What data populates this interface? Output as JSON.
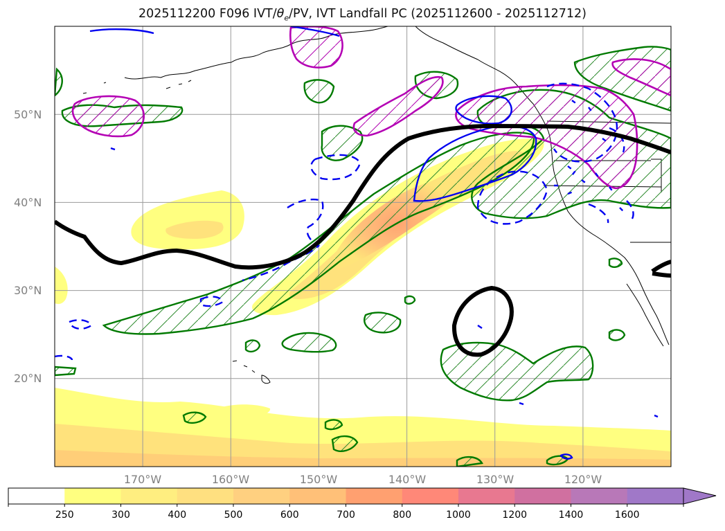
{
  "title": {
    "prefix": "2025112200 F096 IVT/",
    "theta_symbol": "θ",
    "theta_subscript": "e",
    "suffix": "/PV, IVT Landfall PC (2025112600 - 2025112712)"
  },
  "map": {
    "projection": "equirectangular",
    "lon_range": [
      -180,
      -110
    ],
    "lat_range": [
      10,
      60
    ],
    "lat_gridlines": [
      20,
      30,
      40,
      50
    ],
    "lon_gridlines": [
      -170,
      -160,
      -150,
      -140,
      -130,
      -120
    ],
    "lat_labels": [
      "20°N",
      "30°N",
      "40°N",
      "50°N"
    ],
    "lon_labels": [
      "170°W",
      "160°W",
      "150°W",
      "140°W",
      "130°W",
      "120°W"
    ],
    "layers": [
      {
        "name": "IVT filled contours",
        "color_low": "#ffff80",
        "color_high": "#ffa070"
      },
      {
        "name": "landfall probability hatched",
        "color": "#008000"
      },
      {
        "name": "PV contour",
        "color": "#000000"
      },
      {
        "name": "theta-e contours",
        "color": "#0000ff"
      },
      {
        "name": "magenta contours",
        "color": "#c000c0"
      }
    ]
  },
  "colorbar": {
    "labels": [
      "250",
      "300",
      "400",
      "500",
      "600",
      "700",
      "800",
      "1000",
      "1200",
      "1400",
      "1600"
    ],
    "colors": [
      "#ffffff",
      "#ffff80",
      "#ffee80",
      "#ffe080",
      "#ffd080",
      "#ffc078",
      "#ffa070",
      "#ff8878",
      "#e87890",
      "#d070a0",
      "#b878b8",
      "#a078c8"
    ]
  }
}
